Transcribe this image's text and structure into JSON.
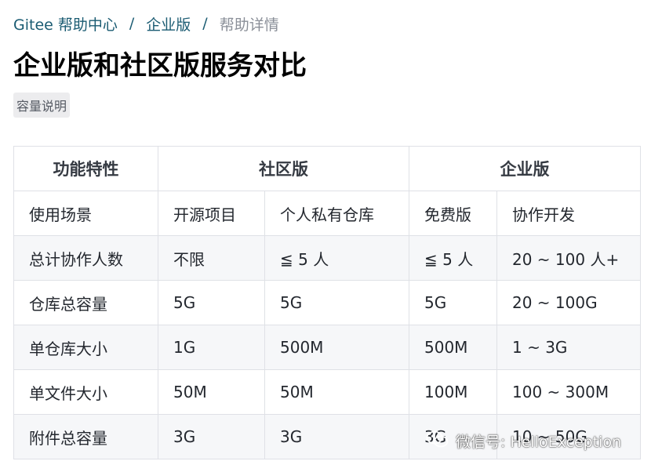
{
  "breadcrumb": {
    "items": [
      "Gitee 帮助中心",
      "企业版"
    ],
    "separator": "/",
    "current": "帮助详情"
  },
  "page": {
    "title": "企业版和社区版服务对比",
    "tag": "容量说明"
  },
  "table": {
    "group_headers": [
      "功能特性",
      "社区版",
      "企业版"
    ],
    "rows": [
      [
        "使用场景",
        "开源项目",
        "个人私有仓库",
        "免费版",
        "协作开发"
      ],
      [
        "总计协作人数",
        "不限",
        "≦ 5 人",
        "≦ 5 人",
        "20 ~ 100 人+"
      ],
      [
        "仓库总容量",
        "5G",
        "5G",
        "5G",
        "20 ~ 100G"
      ],
      [
        "单仓库大小",
        "1G",
        "500M",
        "500M",
        "1 ~ 3G"
      ],
      [
        "单文件大小",
        "50M",
        "50M",
        "100M",
        "100 ~ 300M"
      ],
      [
        "附件总容量",
        "3G",
        "3G",
        "3G",
        "10 ~ 50G"
      ]
    ]
  },
  "watermark": {
    "text": "微信号: HelloException",
    "icon": "wechat-icon"
  },
  "colors": {
    "link": "#1a5b72",
    "muted": "#8a8f98",
    "row_alt": "#f6f7f9",
    "border": "#dfe1e6"
  }
}
